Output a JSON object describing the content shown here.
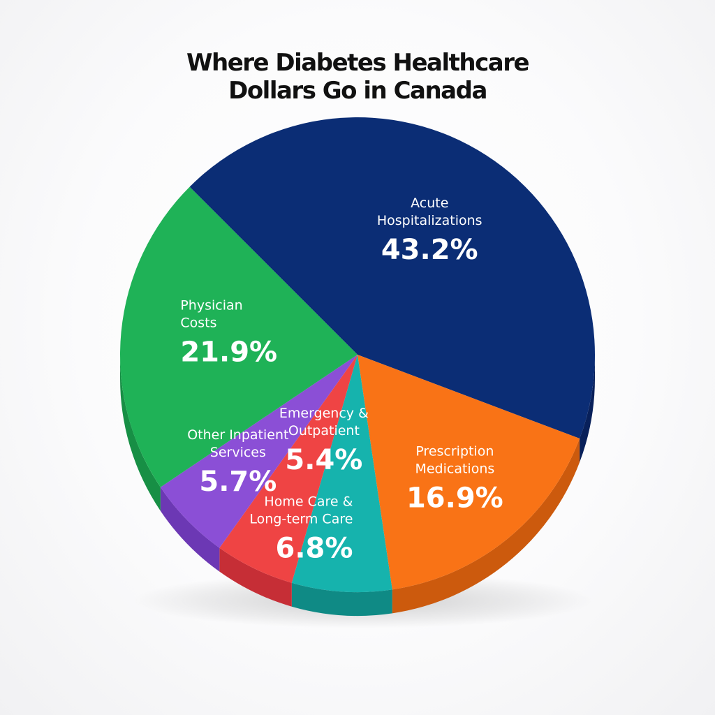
{
  "chart_data": {
    "type": "pie",
    "title_lines": [
      "Where Diabetes Healthcare",
      "Dollars Go in Canada"
    ],
    "slices": [
      {
        "label_lines": [
          "Acute",
          "Hospitalizations"
        ],
        "value": 43.2,
        "value_label": "43.2%",
        "color": "#0b2d75",
        "side_color": "#08205a"
      },
      {
        "label_lines": [
          "Prescription",
          "Medications"
        ],
        "value": 16.9,
        "value_label": "16.9%",
        "color": "#f97316",
        "side_color": "#cc5a0d"
      },
      {
        "label_lines": [
          "Home Care &",
          "Long-term Care"
        ],
        "value": 6.8,
        "value_label": "6.8%",
        "color": "#16b3ad",
        "side_color": "#0f8a85"
      },
      {
        "label_lines": [
          "Emergency &",
          "Outpatient"
        ],
        "value": 5.4,
        "value_label": "5.4%",
        "color": "#ef4444",
        "side_color": "#c62e36"
      },
      {
        "label_lines": [
          "Other Inpatient",
          "Services"
        ],
        "value": 5.7,
        "value_label": "5.7%",
        "color": "#8b4fd6",
        "side_color": "#6c38b4"
      },
      {
        "label_lines": [
          "Physician",
          "Costs"
        ],
        "value": 21.9,
        "value_label": "21.9%",
        "color": "#1fb257",
        "side_color": "#178f45"
      }
    ],
    "legend": "none",
    "style": "3d-pie"
  }
}
